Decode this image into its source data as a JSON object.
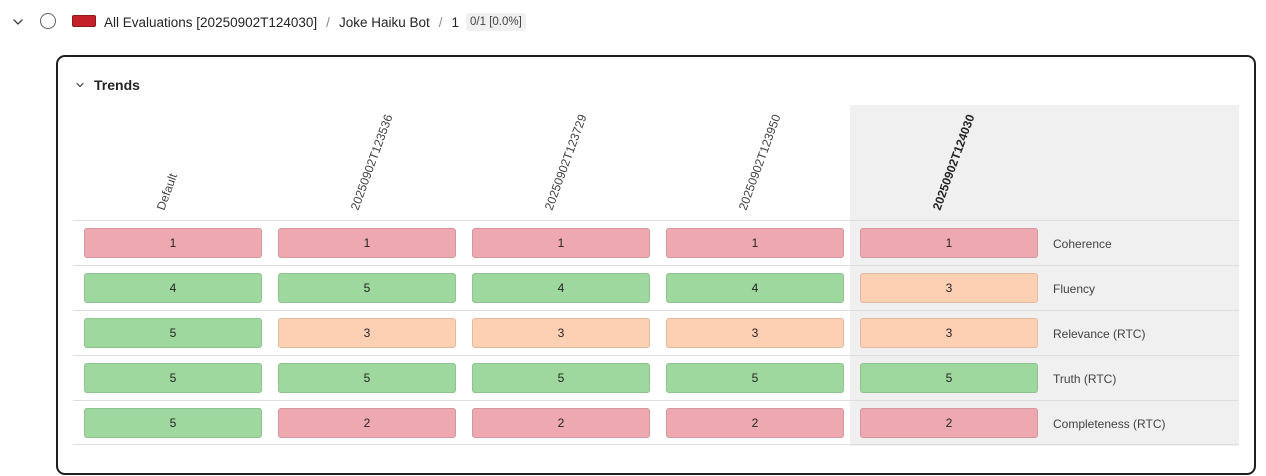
{
  "header": {
    "chevron_icon": "chevron-down-icon",
    "radio_icon": "radio-circle-icon",
    "flag_color": "#c4202a",
    "crumbs": [
      "All Evaluations [20250902T124030]",
      "Joke Haiku Bot",
      "1"
    ],
    "separator": "/",
    "badge": "0/1 [0.0%]"
  },
  "trends": {
    "title": "Trends",
    "chevron_icon": "chevron-down-icon",
    "columns": [
      "Default",
      "20250902T123536",
      "20250902T123729",
      "20250902T123950",
      "20250902T124030"
    ],
    "selected_column": 4,
    "colors": {
      "low": "#eea9b0",
      "mid": "#fdcfb3",
      "high": "#9fd89f",
      "selected_bg": "#f0f0f0"
    },
    "rows": [
      {
        "label": "Coherence",
        "values": [
          "1",
          "1",
          "1",
          "1",
          "1"
        ],
        "levels": [
          "low",
          "low",
          "low",
          "low",
          "low"
        ]
      },
      {
        "label": "Fluency",
        "values": [
          "4",
          "5",
          "4",
          "4",
          "3"
        ],
        "levels": [
          "high",
          "high",
          "high",
          "high",
          "mid"
        ]
      },
      {
        "label": "Relevance (RTC)",
        "values": [
          "5",
          "3",
          "3",
          "3",
          "3"
        ],
        "levels": [
          "high",
          "mid",
          "mid",
          "mid",
          "mid"
        ]
      },
      {
        "label": "Truth (RTC)",
        "values": [
          "5",
          "5",
          "5",
          "5",
          "5"
        ],
        "levels": [
          "high",
          "high",
          "high",
          "high",
          "high"
        ]
      },
      {
        "label": "Completeness (RTC)",
        "values": [
          "5",
          "2",
          "2",
          "2",
          "2"
        ],
        "levels": [
          "high",
          "low",
          "low",
          "low",
          "low"
        ]
      }
    ]
  }
}
